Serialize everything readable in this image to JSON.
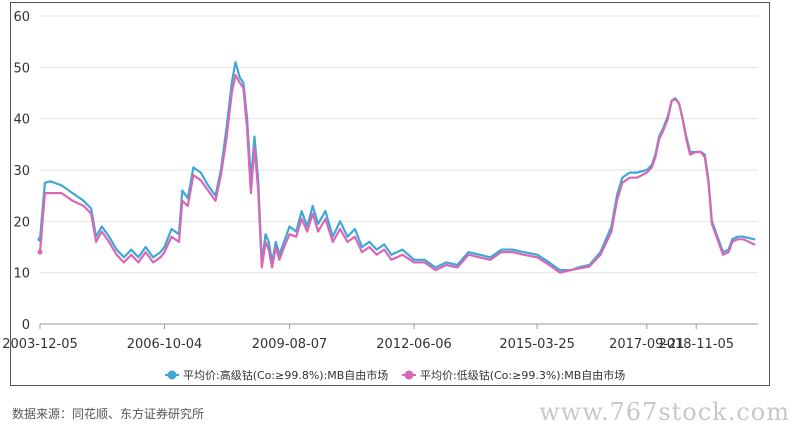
{
  "chart_data": {
    "type": "line",
    "ylim": [
      0,
      60
    ],
    "yticks": [
      0,
      10,
      20,
      30,
      40,
      50,
      60
    ],
    "xlim": [
      "2003-12-05",
      "2020-04-01"
    ],
    "xticks": [
      "2003-12-05",
      "2006-10-04",
      "2009-08-07",
      "2012-06-06",
      "2015-03-25",
      "2017-09-21",
      "2018-11-05"
    ],
    "grid": "horizontal",
    "legend_position": "bottom",
    "series": [
      {
        "name": "平均价:高级钴(Co:≥99.8%):MB自由市场",
        "color": "#3fa7d6",
        "points": [
          [
            "2003-12-05",
            16.5
          ],
          [
            "2004-01-15",
            27.5
          ],
          [
            "2004-03-01",
            27.8
          ],
          [
            "2004-06-01",
            27.0
          ],
          [
            "2004-09-01",
            25.5
          ],
          [
            "2004-12-01",
            24.0
          ],
          [
            "2005-02-01",
            22.5
          ],
          [
            "2005-03-15",
            17.0
          ],
          [
            "2005-05-01",
            19.0
          ],
          [
            "2005-07-01",
            17.0
          ],
          [
            "2005-09-01",
            14.5
          ],
          [
            "2005-11-01",
            13.0
          ],
          [
            "2006-01-01",
            14.5
          ],
          [
            "2006-03-01",
            13.0
          ],
          [
            "2006-05-01",
            15.0
          ],
          [
            "2006-07-01",
            13.0
          ],
          [
            "2006-09-01",
            14.0
          ],
          [
            "2006-10-04",
            15.0
          ],
          [
            "2006-12-01",
            18.5
          ],
          [
            "2007-02-01",
            17.5
          ],
          [
            "2007-03-01",
            26.0
          ],
          [
            "2007-04-15",
            24.5
          ],
          [
            "2007-06-01",
            30.5
          ],
          [
            "2007-08-01",
            29.5
          ],
          [
            "2007-10-01",
            27.0
          ],
          [
            "2007-12-01",
            25.0
          ],
          [
            "2008-01-15",
            30.0
          ],
          [
            "2008-03-01",
            38.0
          ],
          [
            "2008-04-15",
            47.0
          ],
          [
            "2008-05-15",
            51.0
          ],
          [
            "2008-06-20",
            48.0
          ],
          [
            "2008-07-20",
            47.0
          ],
          [
            "2008-08-20",
            40.0
          ],
          [
            "2008-09-20",
            28.0
          ],
          [
            "2008-10-20",
            36.5
          ],
          [
            "2008-11-20",
            28.0
          ],
          [
            "2008-12-20",
            12.0
          ],
          [
            "2009-01-20",
            17.5
          ],
          [
            "2009-02-15",
            16.0
          ],
          [
            "2009-03-15",
            12.0
          ],
          [
            "2009-04-15",
            16.0
          ],
          [
            "2009-05-15",
            13.5
          ],
          [
            "2009-06-15",
            15.5
          ],
          [
            "2009-08-07",
            19.0
          ],
          [
            "2009-10-01",
            18.0
          ],
          [
            "2009-11-15",
            22.0
          ],
          [
            "2010-01-01",
            19.0
          ],
          [
            "2010-02-15",
            23.0
          ],
          [
            "2010-04-01",
            19.5
          ],
          [
            "2010-06-01",
            22.0
          ],
          [
            "2010-08-01",
            17.0
          ],
          [
            "2010-10-01",
            20.0
          ],
          [
            "2010-12-01",
            17.0
          ],
          [
            "2011-02-01",
            18.5
          ],
          [
            "2011-04-01",
            15.0
          ],
          [
            "2011-06-01",
            16.0
          ],
          [
            "2011-08-01",
            14.5
          ],
          [
            "2011-10-01",
            15.5
          ],
          [
            "2011-12-01",
            13.5
          ],
          [
            "2012-03-01",
            14.5
          ],
          [
            "2012-06-06",
            12.5
          ],
          [
            "2012-09-01",
            12.5
          ],
          [
            "2012-12-01",
            11.0
          ],
          [
            "2013-03-01",
            12.0
          ],
          [
            "2013-06-01",
            11.5
          ],
          [
            "2013-09-01",
            14.0
          ],
          [
            "2013-12-01",
            13.5
          ],
          [
            "2014-03-01",
            13.0
          ],
          [
            "2014-06-01",
            14.5
          ],
          [
            "2014-09-01",
            14.5
          ],
          [
            "2014-12-01",
            14.0
          ],
          [
            "2015-03-25",
            13.5
          ],
          [
            "2015-06-01",
            12.5
          ],
          [
            "2015-08-01",
            11.5
          ],
          [
            "2015-10-01",
            10.5
          ],
          [
            "2016-01-01",
            10.5
          ],
          [
            "2016-03-01",
            11.0
          ],
          [
            "2016-06-01",
            11.5
          ],
          [
            "2016-09-01",
            14.0
          ],
          [
            "2016-12-01",
            19.0
          ],
          [
            "2017-01-15",
            25.0
          ],
          [
            "2017-03-01",
            28.5
          ],
          [
            "2017-05-01",
            29.5
          ],
          [
            "2017-07-01",
            29.5
          ],
          [
            "2017-09-21",
            30.0
          ],
          [
            "2017-11-01",
            31.0
          ],
          [
            "2017-12-01",
            33.0
          ],
          [
            "2018-01-01",
            36.5
          ],
          [
            "2018-02-01",
            38.0
          ],
          [
            "2018-03-15",
            40.5
          ],
          [
            "2018-04-15",
            43.5
          ],
          [
            "2018-05-15",
            44.0
          ],
          [
            "2018-06-15",
            43.0
          ],
          [
            "2018-07-15",
            40.0
          ],
          [
            "2018-08-15",
            36.5
          ],
          [
            "2018-09-15",
            33.5
          ],
          [
            "2018-11-05",
            33.5
          ],
          [
            "2018-12-15",
            33.5
          ],
          [
            "2019-01-15",
            33.0
          ],
          [
            "2019-02-15",
            28.0
          ],
          [
            "2019-03-15",
            20.0
          ],
          [
            "2019-05-01",
            17.0
          ],
          [
            "2019-06-15",
            14.0
          ],
          [
            "2019-08-01",
            14.5
          ],
          [
            "2019-09-01",
            16.5
          ],
          [
            "2019-10-15",
            17.0
          ],
          [
            "2019-12-01",
            17.0
          ],
          [
            "2020-03-01",
            16.5
          ]
        ]
      },
      {
        "name": "平均价:低级钴(Co:≥99.3%):MB自由市场",
        "color": "#d867b6",
        "points": [
          [
            "2003-12-05",
            14.0
          ],
          [
            "2004-01-15",
            25.5
          ],
          [
            "2004-03-01",
            25.5
          ],
          [
            "2004-06-01",
            25.5
          ],
          [
            "2004-09-01",
            24.0
          ],
          [
            "2004-12-01",
            23.0
          ],
          [
            "2005-02-01",
            21.5
          ],
          [
            "2005-03-15",
            16.0
          ],
          [
            "2005-05-01",
            18.0
          ],
          [
            "2005-07-01",
            16.0
          ],
          [
            "2005-09-01",
            13.5
          ],
          [
            "2005-11-01",
            12.0
          ],
          [
            "2006-01-01",
            13.5
          ],
          [
            "2006-03-01",
            12.0
          ],
          [
            "2006-05-01",
            14.0
          ],
          [
            "2006-07-01",
            12.0
          ],
          [
            "2006-09-01",
            13.0
          ],
          [
            "2006-10-04",
            14.0
          ],
          [
            "2006-12-01",
            17.0
          ],
          [
            "2007-02-01",
            16.0
          ],
          [
            "2007-03-01",
            24.0
          ],
          [
            "2007-04-15",
            23.0
          ],
          [
            "2007-06-01",
            29.0
          ],
          [
            "2007-08-01",
            28.0
          ],
          [
            "2007-10-01",
            26.0
          ],
          [
            "2007-12-01",
            24.0
          ],
          [
            "2008-01-15",
            29.0
          ],
          [
            "2008-03-01",
            36.0
          ],
          [
            "2008-04-15",
            45.0
          ],
          [
            "2008-05-15",
            48.5
          ],
          [
            "2008-06-20",
            47.0
          ],
          [
            "2008-07-20",
            46.0
          ],
          [
            "2008-08-20",
            38.0
          ],
          [
            "2008-09-20",
            25.5
          ],
          [
            "2008-10-20",
            34.5
          ],
          [
            "2008-11-20",
            26.0
          ],
          [
            "2008-12-20",
            11.0
          ],
          [
            "2009-01-20",
            16.0
          ],
          [
            "2009-02-15",
            14.5
          ],
          [
            "2009-03-15",
            11.0
          ],
          [
            "2009-04-15",
            15.0
          ],
          [
            "2009-05-15",
            12.5
          ],
          [
            "2009-06-15",
            14.5
          ],
          [
            "2009-08-07",
            17.5
          ],
          [
            "2009-10-01",
            17.0
          ],
          [
            "2009-11-15",
            20.5
          ],
          [
            "2010-01-01",
            18.0
          ],
          [
            "2010-02-15",
            21.5
          ],
          [
            "2010-04-01",
            18.0
          ],
          [
            "2010-06-01",
            20.5
          ],
          [
            "2010-08-01",
            16.0
          ],
          [
            "2010-10-01",
            18.5
          ],
          [
            "2010-12-01",
            16.0
          ],
          [
            "2011-02-01",
            17.0
          ],
          [
            "2011-04-01",
            14.0
          ],
          [
            "2011-06-01",
            15.0
          ],
          [
            "2011-08-01",
            13.5
          ],
          [
            "2011-10-01",
            14.5
          ],
          [
            "2011-12-01",
            12.5
          ],
          [
            "2012-03-01",
            13.5
          ],
          [
            "2012-06-06",
            12.0
          ],
          [
            "2012-09-01",
            12.0
          ],
          [
            "2012-12-01",
            10.5
          ],
          [
            "2013-03-01",
            11.5
          ],
          [
            "2013-06-01",
            11.0
          ],
          [
            "2013-09-01",
            13.5
          ],
          [
            "2013-12-01",
            13.0
          ],
          [
            "2014-03-01",
            12.5
          ],
          [
            "2014-06-01",
            14.0
          ],
          [
            "2014-09-01",
            14.0
          ],
          [
            "2014-12-01",
            13.5
          ],
          [
            "2015-03-25",
            13.0
          ],
          [
            "2015-06-01",
            12.0
          ],
          [
            "2015-08-01",
            11.0
          ],
          [
            "2015-10-01",
            10.0
          ],
          [
            "2016-01-01",
            10.5
          ],
          [
            "2016-03-01",
            10.8
          ],
          [
            "2016-06-01",
            11.2
          ],
          [
            "2016-09-01",
            13.5
          ],
          [
            "2016-12-01",
            18.0
          ],
          [
            "2017-01-15",
            24.0
          ],
          [
            "2017-03-01",
            27.5
          ],
          [
            "2017-05-01",
            28.5
          ],
          [
            "2017-07-01",
            28.5
          ],
          [
            "2017-09-21",
            29.5
          ],
          [
            "2017-11-01",
            30.5
          ],
          [
            "2017-12-01",
            32.5
          ],
          [
            "2018-01-01",
            36.0
          ],
          [
            "2018-02-01",
            37.5
          ],
          [
            "2018-03-15",
            40.0
          ],
          [
            "2018-04-15",
            43.5
          ],
          [
            "2018-05-15",
            43.8
          ],
          [
            "2018-06-15",
            43.0
          ],
          [
            "2018-07-15",
            40.0
          ],
          [
            "2018-08-15",
            36.0
          ],
          [
            "2018-09-15",
            33.0
          ],
          [
            "2018-11-05",
            33.5
          ],
          [
            "2018-12-15",
            33.5
          ],
          [
            "2019-01-15",
            32.5
          ],
          [
            "2019-02-15",
            27.5
          ],
          [
            "2019-03-15",
            19.5
          ],
          [
            "2019-05-01",
            16.5
          ],
          [
            "2019-06-15",
            13.5
          ],
          [
            "2019-08-01",
            14.0
          ],
          [
            "2019-09-01",
            16.0
          ],
          [
            "2019-10-15",
            16.5
          ],
          [
            "2019-12-01",
            16.5
          ],
          [
            "2020-03-01",
            15.5
          ]
        ]
      }
    ]
  },
  "footer": {
    "source": "数据来源：同花顺、东方证券研究所",
    "watermark": "www.767stock.com"
  }
}
